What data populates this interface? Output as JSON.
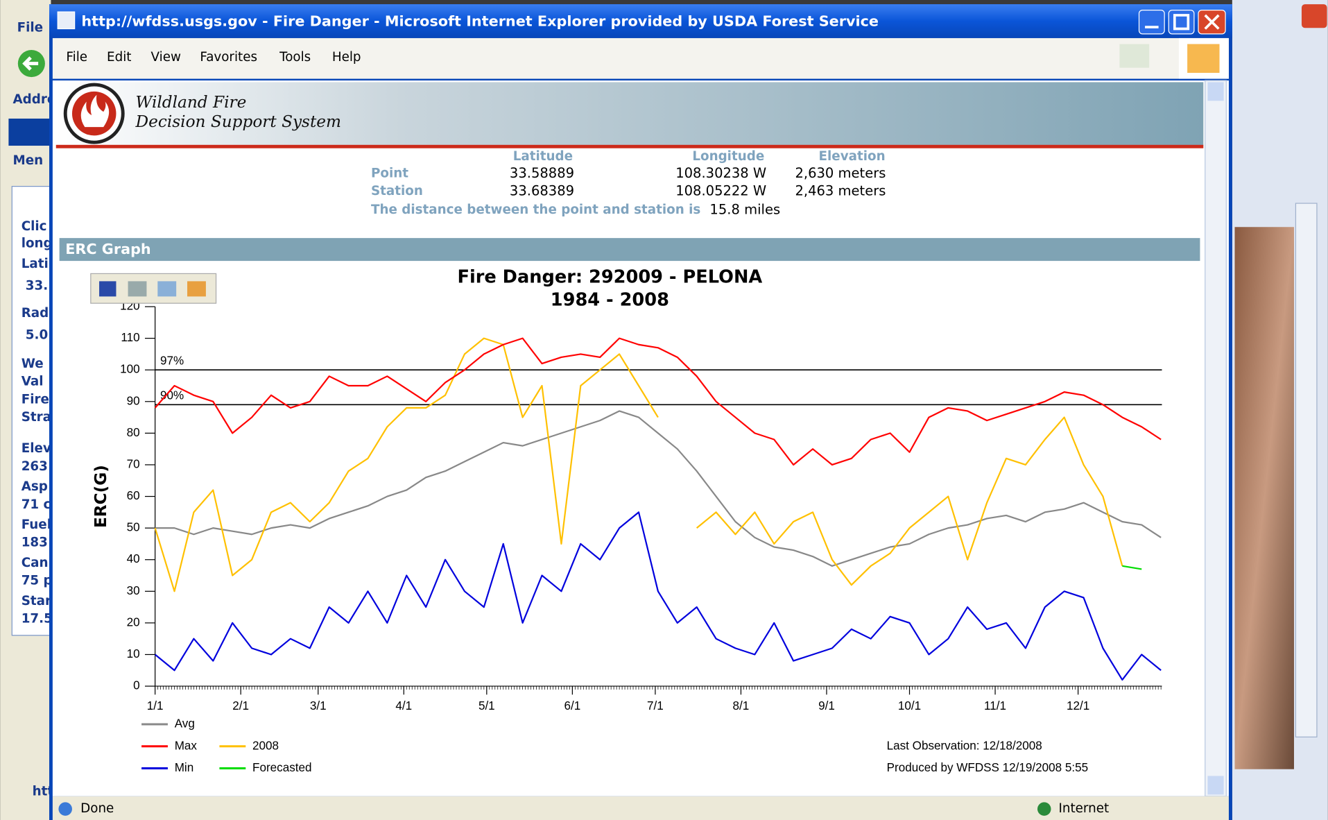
{
  "window": {
    "title": "http://wfdss.usgs.gov - Fire Danger - Microsoft Internet Explorer provided by USDA Forest Service",
    "menu": [
      "File",
      "Edit",
      "View",
      "Favorites",
      "Tools",
      "Help"
    ],
    "status": "Done",
    "zone": "Internet"
  },
  "background_window": {
    "labels": [
      "File",
      "Addre",
      "Men",
      "Clic",
      "long",
      "Lati",
      "33.",
      "Rad",
      "5.0",
      "We",
      "Val",
      "Fire",
      "Stra",
      "Elev",
      "263",
      "Asp",
      "71 c",
      "Fuel",
      "183",
      "Can",
      "75 p",
      "Star",
      "17.5",
      "htt"
    ]
  },
  "header": {
    "line1": "Wildland Fire",
    "line2": "Decision Support System"
  },
  "info": {
    "columns": [
      "Latitude",
      "Longitude",
      "Elevation"
    ],
    "rows": [
      [
        "Point",
        "33.58889",
        "108.30238 W",
        "2,630 meters"
      ],
      [
        "Station",
        "33.68389",
        "108.05222 W",
        "2,463 meters"
      ]
    ],
    "distance_label": "The distance between the point and station is",
    "distance_value": "15.8 miles"
  },
  "section": {
    "title": "ERC Graph"
  },
  "chart_data": {
    "type": "line",
    "title": "Fire Danger:   292009 - PELONA",
    "subtitle": "1984 - 2008",
    "y_label": "ERC(G)",
    "x": [
      0,
      7,
      14,
      21,
      28,
      35,
      42,
      49,
      56,
      63,
      70,
      77,
      84,
      91,
      98,
      105,
      112,
      119,
      126,
      133,
      140,
      147,
      154,
      161,
      168,
      175,
      182,
      189,
      196,
      203,
      210,
      217,
      224,
      231,
      238,
      245,
      252,
      259,
      266,
      273,
      280,
      287,
      294,
      301,
      308,
      315,
      322,
      329,
      336,
      343,
      350,
      357,
      364
    ],
    "xlim": [
      0,
      364
    ],
    "xticks": [
      {
        "value": 0,
        "label": "1/1"
      },
      {
        "value": 31,
        "label": "2/1"
      },
      {
        "value": 59,
        "label": "3/1"
      },
      {
        "value": 90,
        "label": "4/1"
      },
      {
        "value": 120,
        "label": "5/1"
      },
      {
        "value": 151,
        "label": "6/1"
      },
      {
        "value": 181,
        "label": "7/1"
      },
      {
        "value": 212,
        "label": "8/1"
      },
      {
        "value": 243,
        "label": "9/1"
      },
      {
        "value": 273,
        "label": "10/1"
      },
      {
        "value": 304,
        "label": "11/1"
      },
      {
        "value": 334,
        "label": "12/1"
      }
    ],
    "ylim": [
      0,
      120
    ],
    "yticks": [
      0,
      10,
      20,
      30,
      40,
      50,
      60,
      70,
      80,
      90,
      100,
      110,
      120
    ],
    "reference_lines": [
      {
        "label": "97%",
        "value": 100
      },
      {
        "label": "90%",
        "value": 89
      }
    ],
    "series": [
      {
        "name": "Avg",
        "color": "#888888",
        "values": [
          50,
          50,
          48,
          50,
          49,
          48,
          50,
          51,
          50,
          53,
          55,
          57,
          60,
          62,
          66,
          68,
          71,
          74,
          77,
          76,
          78,
          80,
          82,
          84,
          87,
          85,
          80,
          75,
          68,
          60,
          52,
          47,
          44,
          43,
          41,
          38,
          40,
          42,
          44,
          45,
          48,
          50,
          51,
          53,
          54,
          52,
          55,
          56,
          58,
          55,
          52,
          51,
          47
        ]
      },
      {
        "name": "Max",
        "color": "#ff0000",
        "values": [
          88,
          95,
          92,
          90,
          80,
          85,
          92,
          88,
          90,
          98,
          95,
          95,
          98,
          94,
          90,
          96,
          100,
          105,
          108,
          110,
          102,
          104,
          105,
          104,
          110,
          108,
          107,
          104,
          98,
          90,
          85,
          80,
          78,
          70,
          75,
          70,
          72,
          78,
          80,
          74,
          85,
          88,
          87,
          84,
          86,
          88,
          90,
          93,
          92,
          89,
          85,
          82,
          78
        ]
      },
      {
        "name": "Min",
        "color": "#0000dd",
        "values": [
          10,
          5,
          15,
          8,
          20,
          12,
          10,
          15,
          12,
          25,
          20,
          30,
          20,
          35,
          25,
          40,
          30,
          25,
          45,
          20,
          35,
          30,
          45,
          40,
          50,
          55,
          30,
          20,
          25,
          15,
          12,
          10,
          20,
          8,
          10,
          12,
          18,
          15,
          22,
          20,
          10,
          15,
          25,
          18,
          20,
          12,
          25,
          30,
          28,
          12,
          2,
          10,
          5
        ]
      },
      {
        "name": "2008",
        "color": "#ffc000",
        "values": [
          50,
          30,
          55,
          62,
          35,
          40,
          55,
          58,
          52,
          58,
          68,
          72,
          82,
          88,
          88,
          92,
          105,
          110,
          108,
          85,
          95,
          45,
          95,
          100,
          105,
          95,
          85,
          null,
          50,
          55,
          48,
          55,
          45,
          52,
          55,
          40,
          32,
          38,
          42,
          50,
          55,
          60,
          40,
          58,
          72,
          70,
          78,
          85,
          70,
          60,
          38,
          null,
          null
        ]
      },
      {
        "name": "Forecasted",
        "color": "#00dd00",
        "values": [
          null,
          null,
          null,
          null,
          null,
          null,
          null,
          null,
          null,
          null,
          null,
          null,
          null,
          null,
          null,
          null,
          null,
          null,
          null,
          null,
          null,
          null,
          null,
          null,
          null,
          null,
          null,
          null,
          null,
          null,
          null,
          null,
          null,
          null,
          null,
          null,
          null,
          null,
          null,
          null,
          null,
          null,
          null,
          null,
          null,
          null,
          null,
          null,
          null,
          null,
          38,
          37,
          null
        ]
      }
    ],
    "last_observation": "Last Observation:  12/18/2008",
    "produced_by": "Produced by WFDSS  12/19/2008  5:55"
  }
}
